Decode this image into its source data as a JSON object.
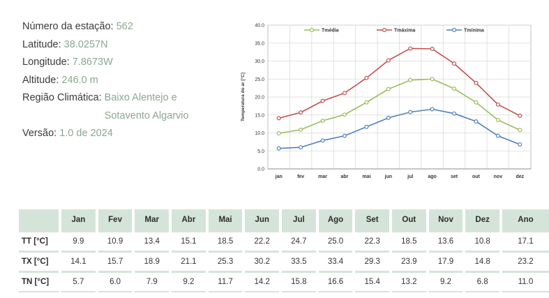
{
  "station": {
    "number_label": "Número da estação:",
    "number_value": "562",
    "latitude_label": "Latitude:",
    "latitude_value": "38.0257N",
    "longitude_label": "Longitude:",
    "longitude_value": "7.8673W",
    "altitude_label": "Altitude:",
    "altitude_value": "246.0 m",
    "region_label": "Região Climática:",
    "region_value_line1": "Baixo Alentejo e",
    "region_value_line2": "Sotavento Algarvio",
    "version_label": "Versão:",
    "version_value": "1.0 de 2024"
  },
  "chart_data": {
    "type": "line",
    "ylabel": "Temperatura do ar [°C]",
    "xlabel": "",
    "ylim": [
      0,
      40
    ],
    "yticks": [
      "0.0",
      "5.0",
      "10.0",
      "15.0",
      "20.0",
      "25.0",
      "30.0",
      "35.0",
      "40.0"
    ],
    "categories": [
      "jan",
      "fev",
      "mar",
      "abr",
      "mai",
      "jun",
      "jul",
      "ago",
      "set",
      "out",
      "nov",
      "dez"
    ],
    "grid": true,
    "legend_position": "top",
    "series": [
      {
        "name": "Tmédia",
        "color": "#9bbb59",
        "values": [
          9.9,
          10.9,
          13.4,
          15.1,
          18.5,
          22.2,
          24.7,
          25.0,
          22.3,
          18.5,
          13.6,
          10.8
        ]
      },
      {
        "name": "Tmáxima",
        "color": "#c0504d",
        "values": [
          14.1,
          15.7,
          18.9,
          21.1,
          25.3,
          30.2,
          33.5,
          33.4,
          29.3,
          23.9,
          17.9,
          14.8
        ]
      },
      {
        "name": "Tmínima",
        "color": "#4f81bd",
        "values": [
          5.7,
          6.0,
          7.9,
          9.2,
          11.7,
          14.2,
          15.8,
          16.6,
          15.4,
          13.2,
          9.2,
          6.8
        ]
      }
    ]
  },
  "table": {
    "headers": [
      "",
      "Jan",
      "Fev",
      "Mar",
      "Abr",
      "Mai",
      "Jun",
      "Jul",
      "Ago",
      "Set",
      "Out",
      "Nov",
      "Dez",
      "Ano"
    ],
    "rows": [
      [
        "TT [°C]",
        "9.9",
        "10.9",
        "13.4",
        "15.1",
        "18.5",
        "22.2",
        "24.7",
        "25.0",
        "22.3",
        "18.5",
        "13.6",
        "10.8",
        "17.1"
      ],
      [
        "TX [°C]",
        "14.1",
        "15.7",
        "18.9",
        "21.1",
        "25.3",
        "30.2",
        "33.5",
        "33.4",
        "29.3",
        "23.9",
        "17.9",
        "14.8",
        "23.2"
      ],
      [
        "TN [°C]",
        "5.7",
        "6.0",
        "7.9",
        "9.2",
        "11.7",
        "14.2",
        "15.8",
        "16.6",
        "15.4",
        "13.2",
        "9.2",
        "6.8",
        "11.0"
      ]
    ]
  }
}
